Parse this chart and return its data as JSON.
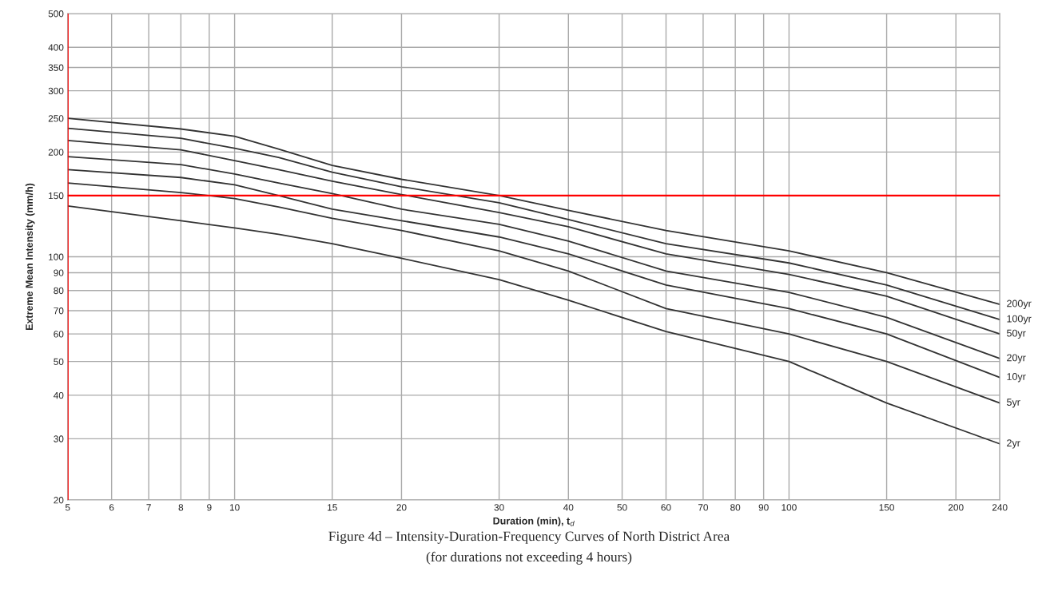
{
  "chart_data": {
    "type": "line",
    "title": "Figure 4d – Intensity-Duration-Frequency Curves of North District Area",
    "subtitle": "(for durations not exceeding 4 hours)",
    "xlabel": "Duration (min), t$_{d}$",
    "ylabel": "Extreme Mean Intensity (mm/h)",
    "x": [
      5,
      8,
      10,
      12,
      15,
      20,
      30,
      40,
      60,
      100,
      150,
      240
    ],
    "series": [
      {
        "name": "200yr",
        "color": "#333333",
        "values": [
          250,
          233,
          222,
          204,
          183,
          167,
          150,
          136,
          119,
          104,
          90,
          73
        ]
      },
      {
        "name": "100yr",
        "color": "#333333",
        "values": [
          234,
          219,
          205,
          193,
          175,
          159,
          143,
          128,
          109,
          96,
          83,
          66
        ]
      },
      {
        "name": "50yr",
        "color": "#333333",
        "values": [
          216,
          203,
          189,
          178,
          165,
          151,
          134,
          122,
          102,
          89,
          77,
          60
        ]
      },
      {
        "name": "20yr",
        "color": "#333333",
        "values": [
          194,
          184,
          173,
          163,
          152,
          137,
          124,
          111,
          91,
          79,
          67,
          51
        ]
      },
      {
        "name": "10yr",
        "color": "#333333",
        "values": [
          178,
          169,
          161,
          150,
          137,
          127,
          114,
          102,
          83,
          71,
          60,
          45
        ]
      },
      {
        "name": "5yr",
        "color": "#333333",
        "values": [
          163,
          153,
          147,
          139,
          129,
          119,
          104,
          91,
          71,
          60,
          50,
          38
        ]
      },
      {
        "name": "2yr",
        "color": "#333333",
        "values": [
          140,
          127,
          121,
          116,
          109,
          99,
          86,
          75,
          61,
          50,
          38,
          29
        ]
      }
    ],
    "ref_lines": [
      {
        "axis": "y",
        "value": 150,
        "color": "#ff0000"
      },
      {
        "axis": "x",
        "value": 5,
        "color": "#ff0000"
      }
    ],
    "log": "xy",
    "grid": true,
    "legend": false,
    "marker": "none",
    "line_style": "solid",
    "xlim": [
      5,
      240
    ],
    "ylim": [
      20,
      500
    ],
    "xticks": [
      5,
      6,
      7,
      8,
      9,
      10,
      15,
      20,
      30,
      40,
      50,
      60,
      70,
      80,
      90,
      100,
      150,
      200,
      240
    ],
    "yticks": [
      20,
      30,
      40,
      50,
      60,
      70,
      80,
      90,
      100,
      150,
      200,
      250,
      300,
      350,
      400,
      500
    ]
  }
}
